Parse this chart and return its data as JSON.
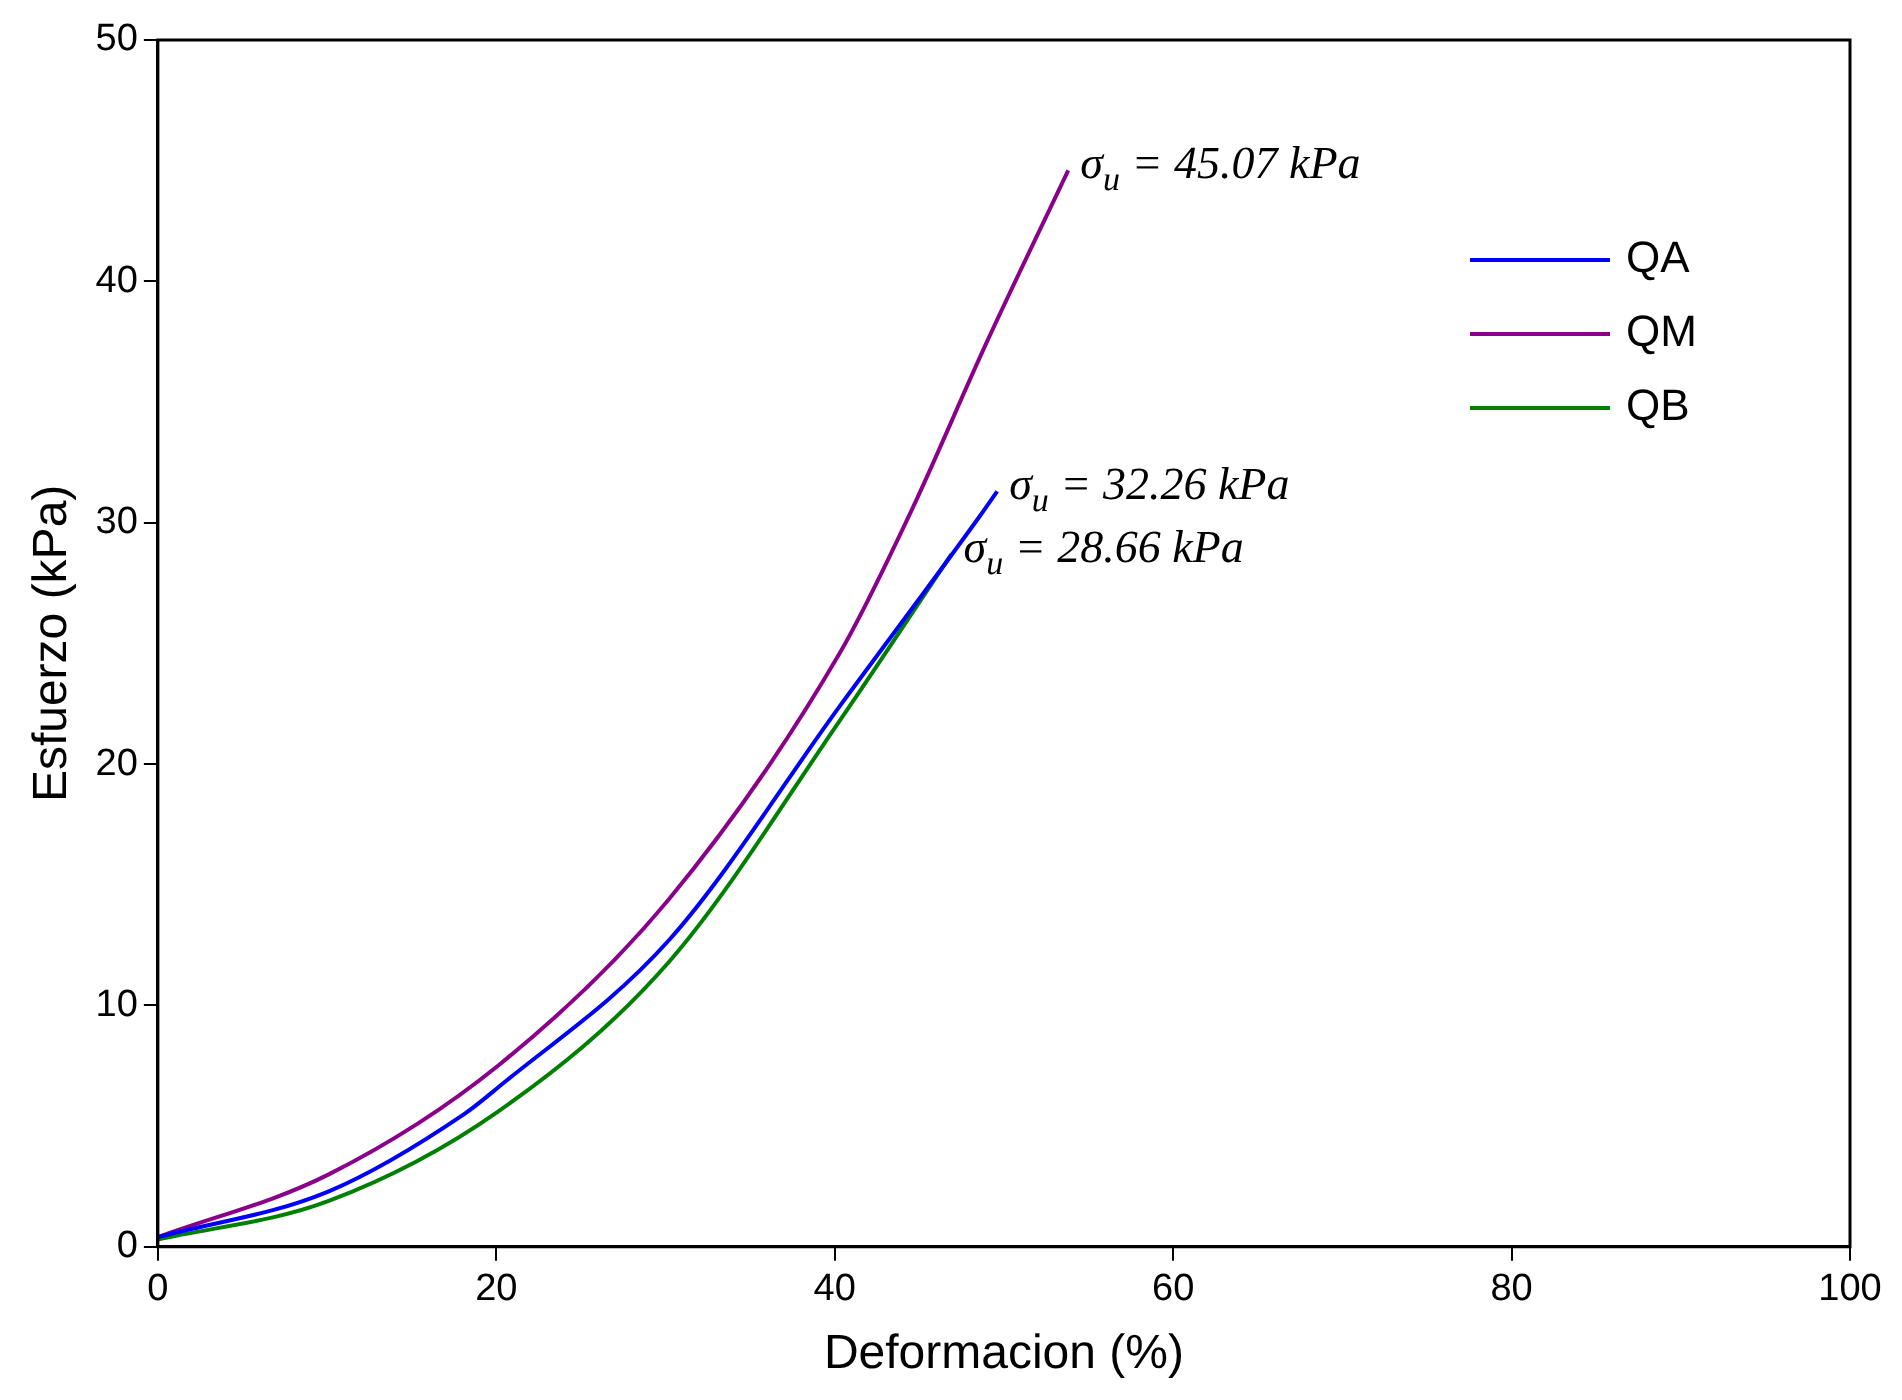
{
  "chart_data": {
    "type": "line",
    "xlabel": "Deformacion (%)",
    "ylabel": "Esfuerzo (kPa)",
    "xlim": [
      0,
      100
    ],
    "xticks": [
      0,
      20,
      40,
      60,
      80,
      100
    ],
    "ylim": [
      0,
      50
    ],
    "yticks": [
      0,
      10,
      20,
      30,
      40,
      50
    ],
    "grid": false,
    "legend": "top right",
    "marker": "none",
    "line_style": "solid",
    "series": [
      {
        "name": "QA",
        "color": "#0000ff",
        "x": [
          0,
          10.1,
          18.1,
          20.1,
          30.2,
          40.3,
          48.6,
          49.6
        ],
        "values": [
          0.4,
          2.3,
          5.5,
          6.6,
          12.7,
          22.4,
          30.3,
          31.3
        ]
      },
      {
        "name": "QM",
        "color": "#8b008b",
        "x": [
          0,
          10.1,
          20.1,
          30.2,
          40.3,
          44.4,
          49,
          53.8
        ],
        "values": [
          0.4,
          3.0,
          7.5,
          14.4,
          24.6,
          30.3,
          37.5,
          44.6
        ]
      },
      {
        "name": "QB",
        "color": "#008000",
        "x": [
          0,
          10.1,
          20.1,
          30.2,
          40.3,
          46.9
        ],
        "values": [
          0.3,
          1.9,
          5.6,
          11.8,
          21.8,
          28.7
        ]
      }
    ],
    "annotations": [
      {
        "text": "σ$_{u}$ = 45.07 kPa",
        "x": 53.8,
        "y": 44.6
      },
      {
        "text": "σ$_{u}$ = 32.26 kPa",
        "x": 49.6,
        "y": 31.3
      },
      {
        "text": "σ$_{u}$ = 28.66 kPa",
        "x": 46.9,
        "y": 28.7
      }
    ]
  }
}
